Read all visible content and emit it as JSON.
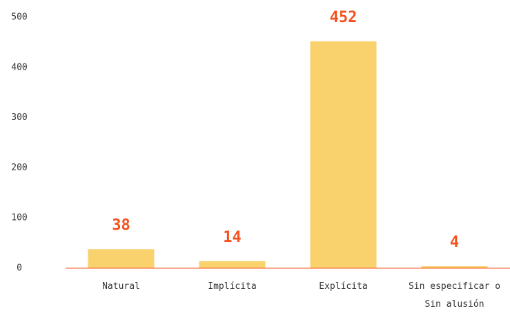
{
  "chart_data": {
    "type": "bar",
    "categories": [
      "Natural",
      "Implícita",
      "Explícita",
      "Sin especificar o Sin alusión"
    ],
    "values": [
      38,
      14,
      452,
      4
    ],
    "color": "#f9d26e",
    "label_color": "#f4511e",
    "axis_color": "#f4511e",
    "ylim": [
      0,
      500
    ],
    "yticks": [
      0,
      100,
      200,
      300,
      400,
      500
    ],
    "grid": false
  }
}
